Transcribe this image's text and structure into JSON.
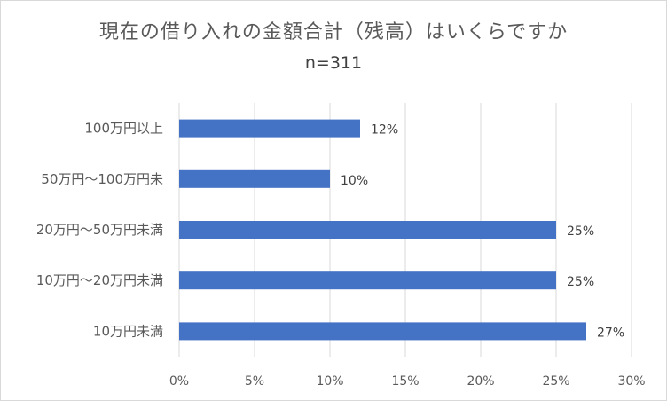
{
  "chart_data": {
    "type": "bar",
    "orientation": "horizontal",
    "title": "現在の借り入れの金額合計（残高）はいくらですか",
    "subtitle": "n=311",
    "categories": [
      "100万円以上",
      "50万円〜100万円未",
      "20万円〜50万円未満",
      "10万円〜20万円未満",
      "10万円未満"
    ],
    "values": [
      12,
      10,
      25,
      25,
      27
    ],
    "data_labels": [
      "12%",
      "10%",
      "25%",
      "25%",
      "27%"
    ],
    "x_ticks": [
      "0%",
      "5%",
      "10%",
      "15%",
      "20%",
      "25%",
      "30%"
    ],
    "xlim": [
      0,
      30
    ],
    "grid": true,
    "bar_color": "#4472c4"
  }
}
